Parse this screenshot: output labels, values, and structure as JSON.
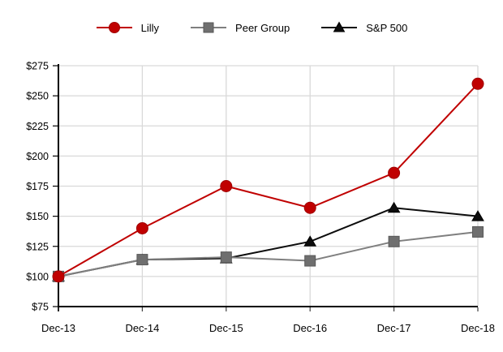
{
  "chart_data": {
    "type": "line",
    "title": "",
    "categories": [
      "Dec-13",
      "Dec-14",
      "Dec-15",
      "Dec-16",
      "Dec-17",
      "Dec-18"
    ],
    "series": [
      {
        "name": "Lilly",
        "marker": "circle",
        "color": "#C00000",
        "marker_fill": "#C00000",
        "marker_stroke": "#A00000",
        "values": [
          100,
          140,
          175,
          157,
          186,
          260
        ]
      },
      {
        "name": "Peer Group",
        "marker": "square",
        "color": "#7F7F7F",
        "marker_fill": "#6F6F6F",
        "marker_stroke": "#595959",
        "values": [
          100,
          114,
          116,
          113,
          129,
          137
        ]
      },
      {
        "name": "S&P 500",
        "marker": "triangle",
        "color": "#0D0D0D",
        "marker_fill": "#0D0D0D",
        "marker_stroke": "#000000",
        "values": [
          100,
          114,
          115,
          129,
          157,
          150
        ]
      }
    ],
    "ylim": [
      75,
      275
    ],
    "y_tick_step": 25,
    "y_tick_prefix": "$",
    "y_tick_labels": [
      "$75",
      "$100",
      "$125",
      "$150",
      "$175",
      "$200",
      "$225",
      "$250",
      "$275"
    ],
    "grid": true,
    "legend_position": "top",
    "colors": {
      "gridline": "#D9D9D9",
      "axis": "#000000",
      "tick": "#404040",
      "text": "#000000"
    }
  }
}
